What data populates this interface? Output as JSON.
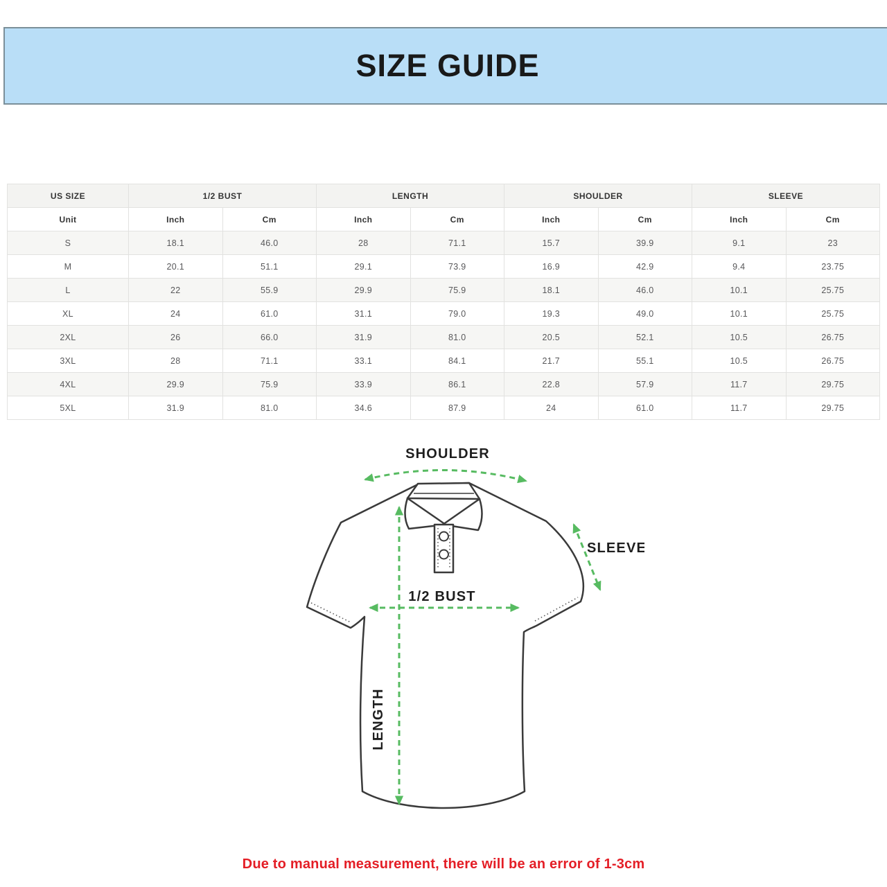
{
  "banner": {
    "title": "SIZE GUIDE",
    "bg": "#b9def7"
  },
  "table": {
    "groups": [
      {
        "label": "US SIZE",
        "span": 1
      },
      {
        "label": "1/2 BUST",
        "span": 2
      },
      {
        "label": "LENGTH",
        "span": 2
      },
      {
        "label": "SHOULDER",
        "span": 2
      },
      {
        "label": "SLEEVE",
        "span": 2
      }
    ],
    "unit_row": [
      "Unit",
      "Inch",
      "Cm",
      "Inch",
      "Cm",
      "Inch",
      "Cm",
      "Inch",
      "Cm"
    ],
    "rows": [
      [
        "S",
        "18.1",
        "46.0",
        "28",
        "71.1",
        "15.7",
        "39.9",
        "9.1",
        "23"
      ],
      [
        "M",
        "20.1",
        "51.1",
        "29.1",
        "73.9",
        "16.9",
        "42.9",
        "9.4",
        "23.75"
      ],
      [
        "L",
        "22",
        "55.9",
        "29.9",
        "75.9",
        "18.1",
        "46.0",
        "10.1",
        "25.75"
      ],
      [
        "XL",
        "24",
        "61.0",
        "31.1",
        "79.0",
        "19.3",
        "49.0",
        "10.1",
        "25.75"
      ],
      [
        "2XL",
        "26",
        "66.0",
        "31.9",
        "81.0",
        "20.5",
        "52.1",
        "10.5",
        "26.75"
      ],
      [
        "3XL",
        "28",
        "71.1",
        "33.1",
        "84.1",
        "21.7",
        "55.1",
        "10.5",
        "26.75"
      ],
      [
        "4XL",
        "29.9",
        "75.9",
        "33.9",
        "86.1",
        "22.8",
        "57.9",
        "11.7",
        "29.75"
      ],
      [
        "5XL",
        "31.9",
        "81.0",
        "34.6",
        "87.9",
        "24",
        "61.0",
        "11.7",
        "29.75"
      ]
    ]
  },
  "diagram": {
    "labels": {
      "shoulder": "SHOULDER",
      "sleeve": "SLEEVE",
      "bust": "1/2 BUST",
      "length": "LENGTH"
    },
    "arrow_color": "#57bb61"
  },
  "footnote": {
    "text": "Due to manual measurement, there will be an error of 1-3cm",
    "color": "#e41e26"
  }
}
